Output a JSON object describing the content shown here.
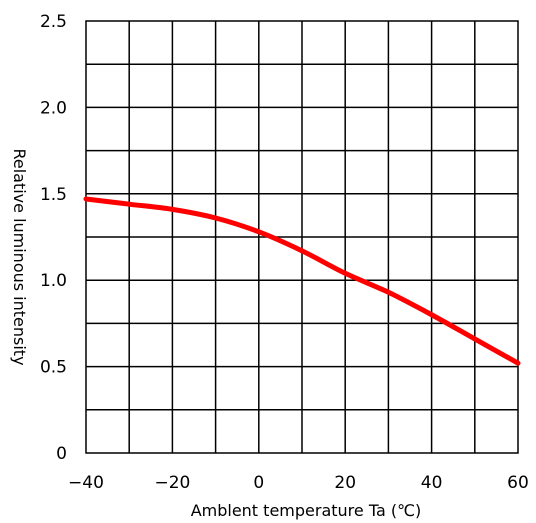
{
  "chart_data": {
    "type": "line",
    "xlabel": "Amblent temperature Ta (℃)",
    "ylabel": "Relative luminous intensity",
    "xlim": [
      -40,
      60
    ],
    "ylim": [
      0,
      2.5
    ],
    "x_ticks": [
      -40,
      -20,
      0,
      20,
      40,
      60
    ],
    "x_tick_labels": [
      "−40",
      "−20",
      "0",
      "20",
      "40",
      "60"
    ],
    "y_ticks": [
      0,
      0.5,
      1.0,
      1.5,
      2.0,
      2.5
    ],
    "y_tick_labels": [
      "0",
      "0.5",
      "1.0",
      "1.5",
      "2.0",
      "2.5"
    ],
    "grid": true,
    "grid_x_step": 10,
    "grid_y_step": 0.25,
    "series": [
      {
        "color": "#ff0000",
        "x": [
          -40,
          -30,
          -20,
          -10,
          0,
          10,
          20,
          30,
          40,
          50,
          60
        ],
        "y": [
          1.47,
          1.44,
          1.41,
          1.36,
          1.28,
          1.17,
          1.04,
          0.93,
          0.8,
          0.66,
          0.52
        ]
      }
    ]
  }
}
